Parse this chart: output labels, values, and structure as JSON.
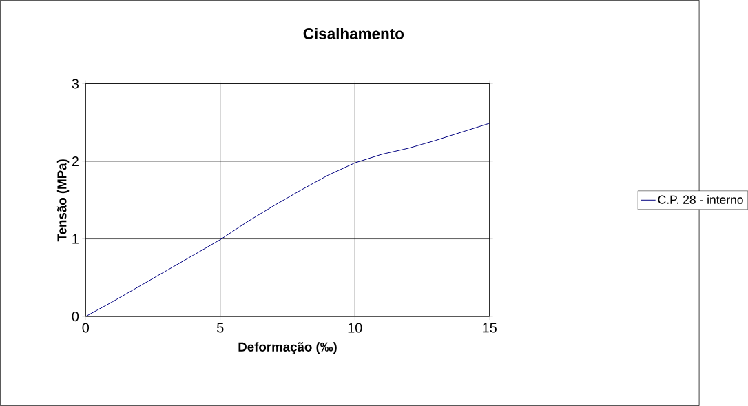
{
  "chart_data": {
    "type": "line",
    "title": "Cisalhamento",
    "xlabel": "Deformação (‰)",
    "ylabel": "Tensão (MPa)",
    "xlim": [
      0,
      15
    ],
    "ylim": [
      0,
      3
    ],
    "xticks": [
      0,
      5,
      10,
      15
    ],
    "yticks": [
      0,
      1,
      2,
      3
    ],
    "grid": true,
    "legend": "right",
    "marker": "none",
    "line_style": "solid",
    "series": [
      {
        "name": "C.P. 28 - interno",
        "color": "#000080",
        "x": [
          0,
          1,
          2,
          3,
          4,
          5,
          6,
          7,
          8,
          9,
          10,
          11,
          12,
          13,
          14,
          15
        ],
        "values": [
          0,
          0.19,
          0.39,
          0.59,
          0.79,
          0.99,
          1.22,
          1.43,
          1.63,
          1.82,
          1.98,
          2.09,
          2.17,
          2.27,
          2.38,
          2.49
        ]
      }
    ]
  }
}
